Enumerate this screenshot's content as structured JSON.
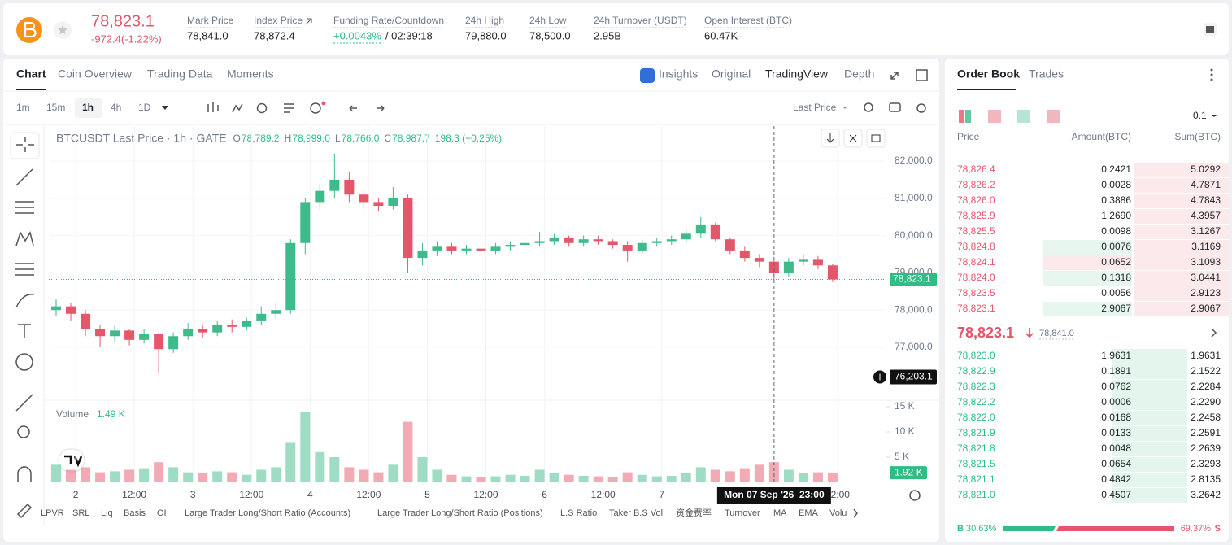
{
  "header": {
    "price": "78,823.1",
    "change": "-972.4(-1.22%)",
    "stats": [
      {
        "label": "Mark Price",
        "value": "78,841.0"
      },
      {
        "label": "Index Price",
        "value": "78,872.4"
      },
      {
        "label": "Funding Rate/Countdown",
        "value": "+0.0043%",
        "countdown": "/ 02:39:18"
      },
      {
        "label": "24h High",
        "value": "79,880.0"
      },
      {
        "label": "24h Low",
        "value": "78,500.0"
      },
      {
        "label": "24h Turnover (USDT)",
        "value": "2.95B"
      },
      {
        "label": "Open Interest (BTC)",
        "value": "60.47K"
      }
    ]
  },
  "chart_tabs": [
    "Chart",
    "Coin Overview",
    "Trading Data",
    "Moments"
  ],
  "view_tabs": [
    "Insights",
    "Original",
    "TradingView",
    "Depth"
  ],
  "intervals": [
    "1m",
    "15m",
    "1h",
    "4h",
    "1D"
  ],
  "price_type": "Last Price",
  "legend": {
    "symbol": "BTCUSDT Last Price · 1h · GATE",
    "ohlc": [
      {
        "label": "O",
        "value": "78,789.2"
      },
      {
        "label": "H",
        "value": "78,999.0"
      },
      {
        "label": "L",
        "value": "78,766.0"
      },
      {
        "label": "C",
        "value": "78,987.7"
      }
    ],
    "change": "198.3 (+0.25%)",
    "volume_label": "Volume",
    "volume_value": "1.49 K"
  },
  "chart_data": {
    "type": "candlestick",
    "up_color": "#3dbb8a",
    "down_color": "#e5566a",
    "grid": true,
    "x": [
      -4,
      -1,
      2,
      5,
      8,
      11,
      14,
      17,
      20,
      23,
      26,
      29,
      32,
      35,
      38,
      41,
      44,
      47,
      50,
      53,
      56,
      59,
      62,
      65,
      68,
      71,
      74,
      77,
      80,
      83,
      86,
      89,
      92,
      95,
      98,
      101,
      104,
      107,
      110,
      113,
      116,
      119,
      122,
      125,
      128,
      131,
      134,
      137,
      140,
      143,
      146,
      149,
      152,
      155
    ],
    "open": [
      78000,
      78100,
      77900,
      77500,
      77300,
      77450,
      77200,
      77350,
      76950,
      77300,
      77500,
      77400,
      77600,
      77550,
      77700,
      77900,
      78000,
      79800,
      80900,
      81200,
      81500,
      81100,
      80900,
      80800,
      81000,
      79400,
      79600,
      79700,
      79600,
      79650,
      79600,
      79700,
      79750,
      79800,
      79850,
      79950,
      79800,
      79900,
      79850,
      79750,
      79600,
      79800,
      79850,
      79900,
      80050,
      80300,
      79900,
      79600,
      79400,
      79300,
      79000,
      79300,
      79350,
      79200
    ],
    "high": [
      78300,
      78200,
      78000,
      77600,
      77600,
      77500,
      77500,
      77400,
      77400,
      77650,
      77600,
      77700,
      77750,
      77800,
      78100,
      78200,
      79900,
      81000,
      81400,
      82200,
      81700,
      81200,
      81000,
      81300,
      81100,
      79800,
      79850,
      79800,
      79750,
      79750,
      79800,
      79850,
      79900,
      80100,
      80050,
      80000,
      80000,
      80000,
      79900,
      79850,
      79900,
      79950,
      80000,
      80150,
      80500,
      80350,
      79950,
      79700,
      79500,
      79350,
      79400,
      79500,
      79450,
      79250
    ],
    "low": [
      77850,
      77700,
      77300,
      77000,
      77150,
      77050,
      77100,
      76300,
      76850,
      77200,
      77250,
      77300,
      77400,
      77450,
      77600,
      77750,
      77900,
      79500,
      80700,
      81000,
      80900,
      80700,
      80650,
      80700,
      79000,
      79200,
      79450,
      79500,
      79500,
      79450,
      79500,
      79600,
      79650,
      79700,
      79750,
      79700,
      79700,
      79750,
      79650,
      79300,
      79500,
      79700,
      79750,
      79800,
      79950,
      79850,
      79500,
      79300,
      79150,
      78800,
      78900,
      79200,
      79100,
      78750
    ],
    "close": [
      78100,
      77900,
      77500,
      77300,
      77450,
      77200,
      77350,
      76950,
      77300,
      77500,
      77400,
      77600,
      77550,
      77700,
      77900,
      78000,
      79800,
      80900,
      81200,
      81500,
      81100,
      80900,
      80800,
      81000,
      79400,
      79600,
      79700,
      79600,
      79650,
      79600,
      79700,
      79750,
      79800,
      79850,
      79950,
      79800,
      79900,
      79850,
      79750,
      79600,
      79800,
      79850,
      79900,
      80050,
      80300,
      79900,
      79600,
      79400,
      79300,
      79000,
      79300,
      79350,
      79200,
      78823.1
    ],
    "volume": [
      3500,
      2500,
      3000,
      2000,
      2200,
      2500,
      2800,
      4000,
      3000,
      2000,
      1800,
      2200,
      2000,
      1500,
      2500,
      3000,
      8000,
      14000,
      6000,
      5000,
      3000,
      2500,
      2000,
      3500,
      12000,
      5000,
      2500,
      1500,
      1200,
      1000,
      1200,
      1500,
      1300,
      2500,
      1800,
      1500,
      1300,
      1200,
      1000,
      2000,
      1500,
      1200,
      1300,
      1800,
      3000,
      2500,
      2200,
      2800,
      3500,
      4000,
      2500,
      1800,
      2000,
      1920
    ],
    "xlim": [
      -5.5,
      166
    ],
    "xticks": [
      {
        "value": 0,
        "label": "2"
      },
      {
        "value": 12,
        "label": "12:00"
      },
      {
        "value": 24,
        "label": "3"
      },
      {
        "value": 36,
        "label": "12:00"
      },
      {
        "value": 48,
        "label": "4"
      },
      {
        "value": 60,
        "label": "12:00"
      },
      {
        "value": 72,
        "label": "5"
      },
      {
        "value": 84,
        "label": "12:00"
      },
      {
        "value": 96,
        "label": "6"
      },
      {
        "value": 108,
        "label": "12:00"
      },
      {
        "value": 120,
        "label": "7"
      },
      {
        "value": 156,
        "label": "12:00"
      }
    ],
    "ylim": [
      75580,
      82940
    ],
    "yticks": [
      {
        "value": 77000,
        "label": "77,000.0"
      },
      {
        "value": 78000,
        "label": "78,000.0"
      },
      {
        "value": 79000,
        "label": "79,000.0"
      },
      {
        "value": 80000,
        "label": "80,000.0"
      },
      {
        "value": 81000,
        "label": "81,000.0"
      },
      {
        "value": 82000,
        "label": "82,000.0"
      }
    ],
    "volume_ylim": [
      0,
      16300
    ],
    "volume_yticks": [
      {
        "value": 5000,
        "label": "5 K"
      },
      {
        "value": 10000,
        "label": "10 K"
      },
      {
        "value": 15000,
        "label": "15 K"
      }
    ],
    "last_price": {
      "value": 78823.1,
      "label": "78,823.1"
    },
    "last_volume": {
      "value": 1920,
      "label": "1.92 K"
    },
    "crosshair": {
      "x": 143,
      "x_label": "Mon 07 Sep '26  23:00",
      "y": {
        "value": 76203.1,
        "label": "76,203.1"
      }
    }
  },
  "indicators": [
    "LPVR",
    "SRL",
    "Liq",
    "Basis",
    "OI",
    "Large Trader Long/Short Ratio (Accounts)",
    "Large Trader Long/Short Ratio (Positions)",
    "L.S Ratio",
    "Taker B.S Vol.",
    "资金费率",
    "Turnover",
    "MA",
    "EMA",
    "Volu"
  ],
  "order_book": {
    "tabs": [
      "Order Book",
      "Trades"
    ],
    "precision": "0.1",
    "columns": [
      "Price",
      "Amount(BTC)",
      "Sum(BTC)"
    ],
    "asks": [
      [
        "78,826.4",
        "0.2421",
        "5.0292"
      ],
      [
        "78,826.2",
        "0.0028",
        "4.7871"
      ],
      [
        "78,826.0",
        "0.3886",
        "4.7843"
      ],
      [
        "78,825.9",
        "1.2690",
        "4.3957"
      ],
      [
        "78,825.5",
        "0.0098",
        "3.1267"
      ],
      [
        "78,824.8",
        "0.0076",
        "3.1169"
      ],
      [
        "78,824.1",
        "0.0652",
        "3.1093"
      ],
      [
        "78,824.0",
        "0.1318",
        "3.0441"
      ],
      [
        "78,823.5",
        "0.0056",
        "2.9123"
      ],
      [
        "78,823.1",
        "2.9067",
        "2.9067"
      ]
    ],
    "mid_price": "78,823.1",
    "mark_price": "78,841.0",
    "bids": [
      [
        "78,823.0",
        "1.9631",
        "1.9631"
      ],
      [
        "78,822.9",
        "0.1891",
        "2.1522"
      ],
      [
        "78,822.3",
        "0.0762",
        "2.2284"
      ],
      [
        "78,822.2",
        "0.0006",
        "2.2290"
      ],
      [
        "78,822.0",
        "0.0168",
        "2.2458"
      ],
      [
        "78,821.9",
        "0.0133",
        "2.2591"
      ],
      [
        "78,821.8",
        "0.0048",
        "2.2639"
      ],
      [
        "78,821.5",
        "0.0654",
        "2.3293"
      ],
      [
        "78,821.1",
        "0.4842",
        "2.8135"
      ],
      [
        "78,821.0",
        "0.4507",
        "3.2642"
      ]
    ],
    "buy_label": "B",
    "buy_ratio": "30.63%",
    "sell_ratio": "69.37%",
    "sell_label": "S"
  }
}
